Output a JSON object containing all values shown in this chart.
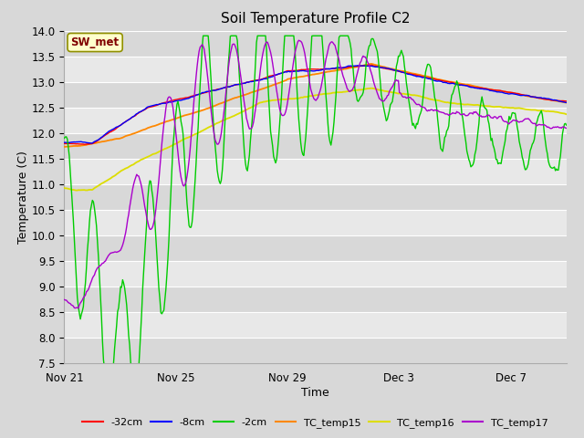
{
  "title": "Soil Temperature Profile C2",
  "xlabel": "Time",
  "ylabel": "Temperature (C)",
  "ylim": [
    7.5,
    14.0
  ],
  "yticks": [
    7.5,
    8.0,
    8.5,
    9.0,
    9.5,
    10.0,
    10.5,
    11.0,
    11.5,
    12.0,
    12.5,
    13.0,
    13.5,
    14.0
  ],
  "bg_color": "#d8d8d8",
  "plot_bg": "#e8e8e8",
  "grid_color": "#ffffff",
  "annotation_label": "SW_met",
  "annotation_bg": "#ffffcc",
  "annotation_border": "#909000",
  "annotation_text_color": "#800000",
  "series_colors": {
    "neg32cm": "#ff0000",
    "neg8cm": "#0000ff",
    "neg2cm": "#00cc00",
    "TC_temp15": "#ff8800",
    "TC_temp16": "#dddd00",
    "TC_temp17": "#aa00cc"
  },
  "legend_labels": [
    "-32cm",
    "-8cm",
    "-2cm",
    "TC_temp15",
    "TC_temp16",
    "TC_temp17"
  ],
  "xtick_labels": [
    "Nov 21",
    "Nov 25",
    "Nov 29",
    "Dec 3",
    "Dec 7"
  ],
  "xtick_positions": [
    0,
    4,
    8,
    12,
    16
  ],
  "num_days": 18,
  "n_points": 500
}
